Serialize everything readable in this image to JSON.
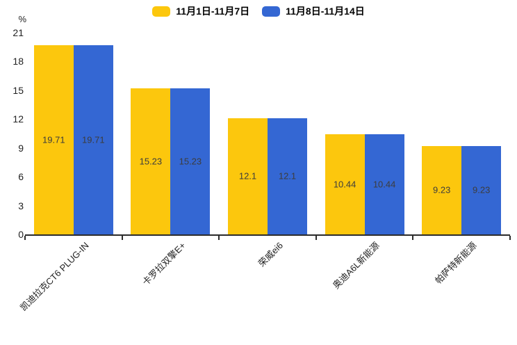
{
  "legend": {
    "items": [
      {
        "label": "11月1日-11月7日",
        "color": "#FCC70D"
      },
      {
        "label": "11月8日-11月14日",
        "color": "#3467D3"
      }
    ]
  },
  "y_axis": {
    "unit": "%"
  },
  "chart_data": {
    "type": "bar",
    "title": "",
    "categories": [
      "凯迪拉克CT6 PLUG-IN",
      "卡罗拉双擎E+",
      "荣威ei6",
      "奥迪A6L新能源",
      "帕萨特新能源"
    ],
    "series": [
      {
        "name": "11月1日-11月7日",
        "color": "#FCC70D",
        "values": [
          19.71,
          15.23,
          12.1,
          10.44,
          9.23
        ]
      },
      {
        "name": "11月8日-11月14日",
        "color": "#3467D3",
        "values": [
          19.71,
          15.23,
          12.1,
          10.44,
          9.23
        ]
      }
    ],
    "value_labels": [
      [
        "19.71",
        "15.23",
        "12.1",
        "10.44",
        "9.23"
      ],
      [
        "19.71",
        "15.23",
        "12.1",
        "10.44",
        "9.23"
      ]
    ],
    "xlabel": "",
    "ylabel": "%",
    "ylim": [
      0,
      21
    ],
    "yticks": [
      0,
      3,
      6,
      9,
      12,
      15,
      18,
      21
    ],
    "grid": false,
    "legend_position": "top",
    "bar_value_labels_inside": true
  }
}
